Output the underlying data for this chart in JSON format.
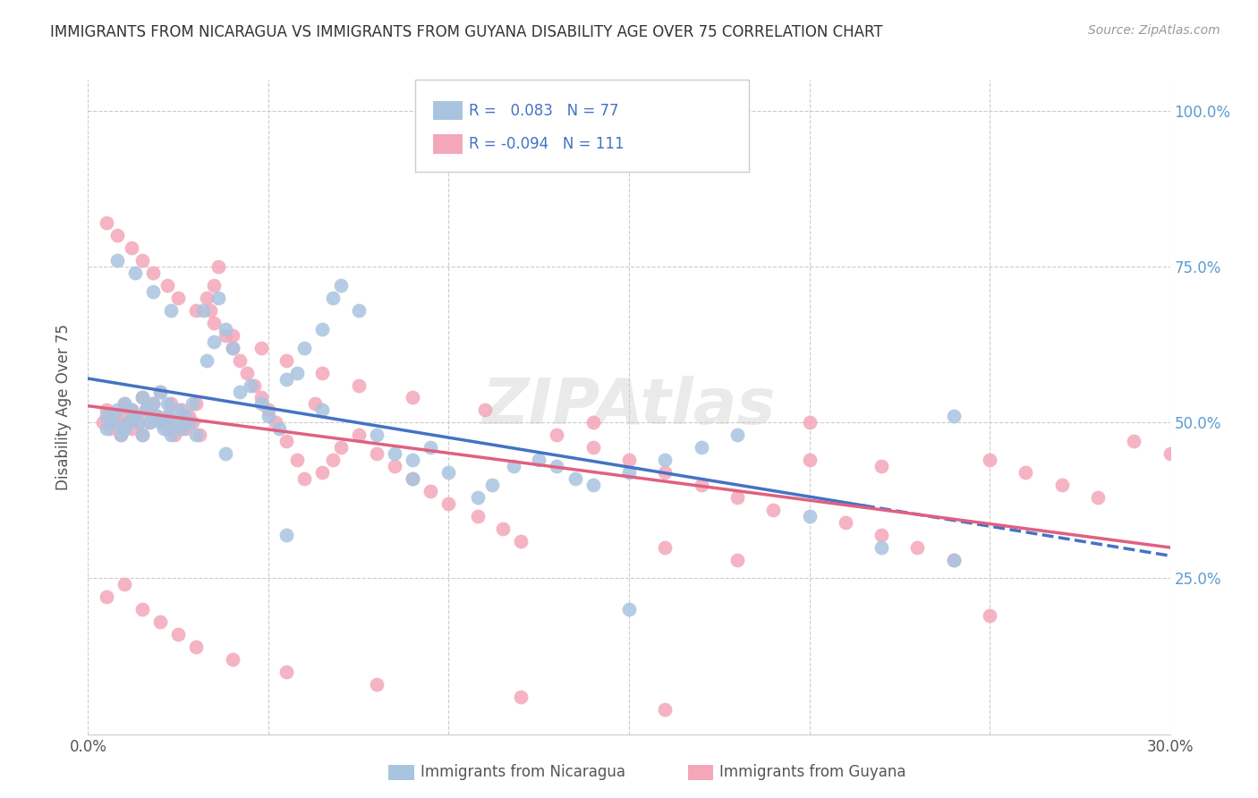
{
  "title": "IMMIGRANTS FROM NICARAGUA VS IMMIGRANTS FROM GUYANA DISABILITY AGE OVER 75 CORRELATION CHART",
  "source": "Source: ZipAtlas.com",
  "ylabel": "Disability Age Over 75",
  "xlim": [
    0.0,
    0.3
  ],
  "ylim": [
    0.0,
    1.05
  ],
  "ytick_labels": [
    "",
    "25.0%",
    "50.0%",
    "75.0%",
    "100.0%"
  ],
  "ytick_vals": [
    0.0,
    0.25,
    0.5,
    0.75,
    1.0
  ],
  "xtick_labels": [
    "0.0%",
    "",
    "",
    "",
    "",
    "",
    "30.0%"
  ],
  "xtick_vals": [
    0.0,
    0.05,
    0.1,
    0.15,
    0.2,
    0.25,
    0.3
  ],
  "nicaragua_R": 0.083,
  "nicaragua_N": 77,
  "guyana_R": -0.094,
  "guyana_N": 111,
  "nicaragua_color": "#a8c4e0",
  "guyana_color": "#f4a7b9",
  "nicaragua_line_color": "#4472c4",
  "guyana_line_color": "#e06080",
  "watermark": "ZIPAtlas",
  "nicaragua_x": [
    0.005,
    0.005,
    0.007,
    0.008,
    0.009,
    0.01,
    0.01,
    0.011,
    0.012,
    0.013,
    0.014,
    0.015,
    0.015,
    0.016,
    0.017,
    0.018,
    0.019,
    0.02,
    0.02,
    0.021,
    0.022,
    0.022,
    0.023,
    0.024,
    0.025,
    0.026,
    0.027,
    0.028,
    0.029,
    0.03,
    0.032,
    0.033,
    0.035,
    0.036,
    0.038,
    0.04,
    0.042,
    0.045,
    0.048,
    0.05,
    0.053,
    0.055,
    0.058,
    0.06,
    0.065,
    0.068,
    0.07,
    0.075,
    0.08,
    0.085,
    0.09,
    0.095,
    0.1,
    0.108,
    0.112,
    0.118,
    0.125,
    0.13,
    0.135,
    0.14,
    0.15,
    0.16,
    0.17,
    0.18,
    0.2,
    0.22,
    0.24,
    0.008,
    0.013,
    0.018,
    0.023,
    0.038,
    0.055,
    0.065,
    0.09,
    0.15,
    0.24
  ],
  "nicaragua_y": [
    0.49,
    0.51,
    0.5,
    0.52,
    0.48,
    0.49,
    0.53,
    0.5,
    0.52,
    0.51,
    0.5,
    0.48,
    0.54,
    0.52,
    0.5,
    0.53,
    0.51,
    0.55,
    0.5,
    0.49,
    0.51,
    0.53,
    0.48,
    0.5,
    0.52,
    0.49,
    0.51,
    0.5,
    0.53,
    0.48,
    0.68,
    0.6,
    0.63,
    0.7,
    0.65,
    0.62,
    0.55,
    0.56,
    0.53,
    0.51,
    0.49,
    0.57,
    0.58,
    0.62,
    0.65,
    0.7,
    0.72,
    0.68,
    0.48,
    0.45,
    0.44,
    0.46,
    0.42,
    0.38,
    0.4,
    0.43,
    0.44,
    0.43,
    0.41,
    0.4,
    0.42,
    0.44,
    0.46,
    0.48,
    0.35,
    0.3,
    0.28,
    0.76,
    0.74,
    0.71,
    0.68,
    0.45,
    0.32,
    0.52,
    0.41,
    0.2,
    0.51
  ],
  "guyana_x": [
    0.004,
    0.005,
    0.006,
    0.007,
    0.008,
    0.009,
    0.01,
    0.01,
    0.011,
    0.012,
    0.012,
    0.013,
    0.014,
    0.015,
    0.015,
    0.016,
    0.017,
    0.018,
    0.019,
    0.02,
    0.021,
    0.022,
    0.022,
    0.023,
    0.024,
    0.025,
    0.026,
    0.027,
    0.028,
    0.029,
    0.03,
    0.031,
    0.033,
    0.034,
    0.035,
    0.036,
    0.038,
    0.04,
    0.042,
    0.044,
    0.046,
    0.048,
    0.05,
    0.052,
    0.055,
    0.058,
    0.06,
    0.063,
    0.065,
    0.068,
    0.07,
    0.075,
    0.08,
    0.085,
    0.09,
    0.095,
    0.1,
    0.108,
    0.115,
    0.12,
    0.13,
    0.14,
    0.15,
    0.16,
    0.17,
    0.18,
    0.19,
    0.2,
    0.21,
    0.22,
    0.23,
    0.24,
    0.25,
    0.26,
    0.27,
    0.28,
    0.29,
    0.3,
    0.005,
    0.008,
    0.012,
    0.015,
    0.018,
    0.022,
    0.025,
    0.03,
    0.035,
    0.04,
    0.048,
    0.055,
    0.065,
    0.075,
    0.09,
    0.11,
    0.14,
    0.16,
    0.18,
    0.2,
    0.22,
    0.25,
    0.005,
    0.01,
    0.015,
    0.02,
    0.025,
    0.03,
    0.04,
    0.055,
    0.08,
    0.12,
    0.16
  ],
  "guyana_y": [
    0.5,
    0.52,
    0.49,
    0.51,
    0.5,
    0.48,
    0.53,
    0.51,
    0.5,
    0.52,
    0.49,
    0.51,
    0.5,
    0.48,
    0.54,
    0.52,
    0.5,
    0.53,
    0.51,
    0.55,
    0.5,
    0.49,
    0.51,
    0.53,
    0.48,
    0.5,
    0.52,
    0.49,
    0.51,
    0.5,
    0.53,
    0.48,
    0.7,
    0.68,
    0.72,
    0.75,
    0.64,
    0.62,
    0.6,
    0.58,
    0.56,
    0.54,
    0.52,
    0.5,
    0.47,
    0.44,
    0.41,
    0.53,
    0.42,
    0.44,
    0.46,
    0.48,
    0.45,
    0.43,
    0.41,
    0.39,
    0.37,
    0.35,
    0.33,
    0.31,
    0.48,
    0.46,
    0.44,
    0.42,
    0.4,
    0.38,
    0.36,
    0.5,
    0.34,
    0.32,
    0.3,
    0.28,
    0.44,
    0.42,
    0.4,
    0.38,
    0.47,
    0.45,
    0.82,
    0.8,
    0.78,
    0.76,
    0.74,
    0.72,
    0.7,
    0.68,
    0.66,
    0.64,
    0.62,
    0.6,
    0.58,
    0.56,
    0.54,
    0.52,
    0.5,
    0.3,
    0.28,
    0.44,
    0.43,
    0.19,
    0.22,
    0.24,
    0.2,
    0.18,
    0.16,
    0.14,
    0.12,
    0.1,
    0.08,
    0.06,
    0.04
  ]
}
